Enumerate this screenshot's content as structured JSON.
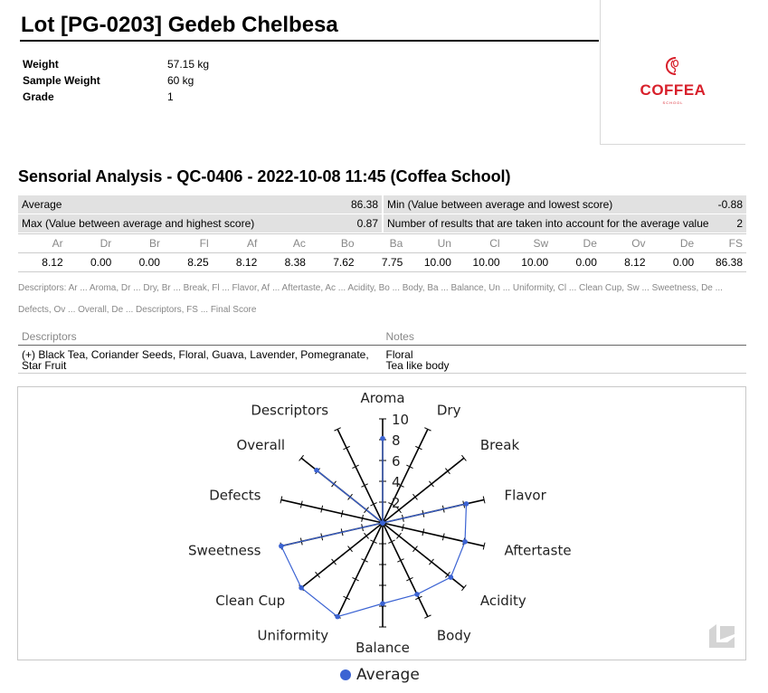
{
  "header": {
    "title": "Lot [PG-0203] Gedeb Chelbesa",
    "logo": {
      "name": "COFFEA",
      "sub": "SCHOOL",
      "icon": "coffea-logo-icon",
      "color": "#d8202b"
    }
  },
  "meta": [
    {
      "label": "Weight",
      "value": "57.15 kg"
    },
    {
      "label": "Sample Weight",
      "value": "60 kg"
    },
    {
      "label": "Grade",
      "value": "1"
    }
  ],
  "analysis": {
    "title": "Sensorial Analysis - QC-0406 - 2022-10-08 11:45 (Coffea School)",
    "summary": {
      "average_label": "Average",
      "average_value": "86.38",
      "min_label": "Min (Value between average and lowest score)",
      "min_value": "-0.88",
      "max_label": "Max (Value between average and highest score)",
      "max_value": "0.87",
      "count_label": "Number of results that are taken into account for the average value",
      "count_value": "2"
    },
    "score_headers": [
      "Ar",
      "Dr",
      "Br",
      "Fl",
      "Af",
      "Ac",
      "Bo",
      "Ba",
      "Un",
      "Cl",
      "Sw",
      "De",
      "Ov",
      "De",
      "FS"
    ],
    "score_values": [
      "8.12",
      "0.00",
      "0.00",
      "8.25",
      "8.12",
      "8.38",
      "7.62",
      "7.75",
      "10.00",
      "10.00",
      "10.00",
      "0.00",
      "8.12",
      "0.00",
      "86.38"
    ],
    "descriptors_legend": "Descriptors: Ar ... Aroma, Dr ... Dry, Br ... Break, Fl ... Flavor, Af ... Aftertaste, Ac ... Acidity, Bo ... Body, Ba ... Balance, Un ... Uniformity, Cl ... Clean Cup, Sw ... Sweetness, De ... Defects, Ov ... Overall, De ... Descriptors, FS ... Final Score",
    "descriptors_header": "Descriptors",
    "notes_header": "Notes",
    "descriptors_value": "(+) Black Tea, Coriander Seeds, Floral, Guava, Lavender, Pomegranate, Star Fruit",
    "notes_lines": [
      "Floral",
      "Tea like body"
    ]
  },
  "chart_data": {
    "type": "radar",
    "categories": [
      "Aroma",
      "Dry",
      "Break",
      "Flavor",
      "Aftertaste",
      "Acidity",
      "Body",
      "Balance",
      "Uniformity",
      "Clean Cup",
      "Sweetness",
      "Defects",
      "Overall",
      "Descriptors"
    ],
    "series": [
      {
        "name": "Average",
        "values": [
          8.12,
          0,
          0,
          8.25,
          8.12,
          8.38,
          7.62,
          7.75,
          10,
          10,
          10,
          0,
          8.12,
          0
        ],
        "color": "#3b63d3"
      }
    ],
    "rmax": 10,
    "ticks": [
      2,
      4,
      6,
      8,
      10
    ],
    "legend": "bottom"
  }
}
